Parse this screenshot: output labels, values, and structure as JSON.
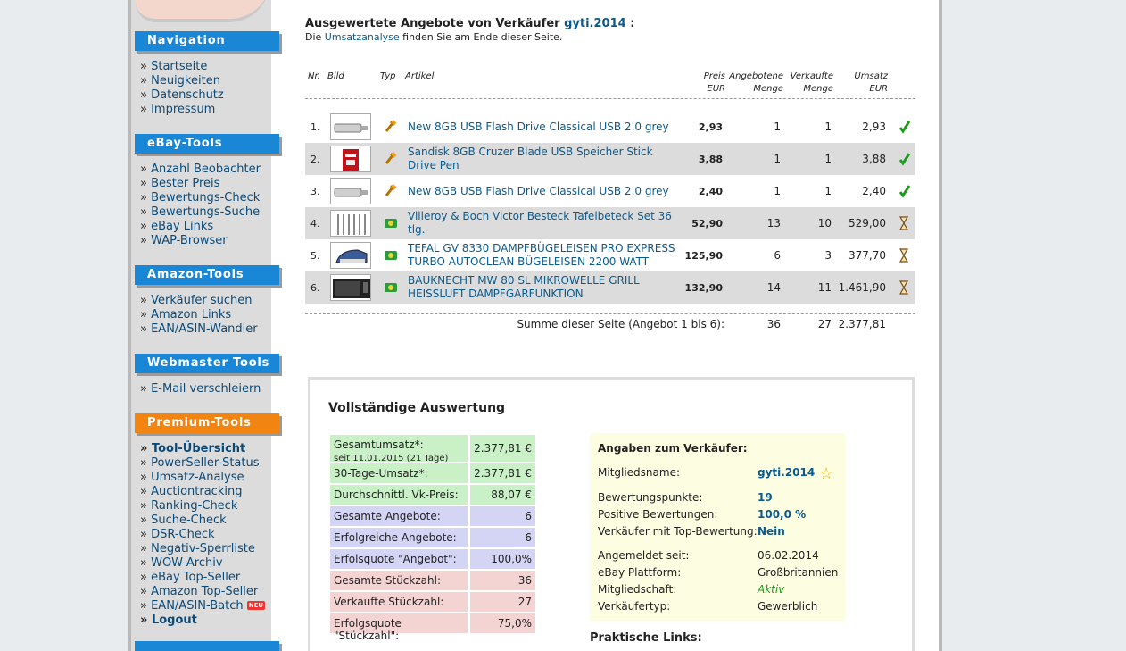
{
  "sidebar": {
    "sections": [
      {
        "title": "Navigation",
        "items": [
          "Startseite",
          "Neuigkeiten",
          "Datenschutz",
          "Impressum"
        ]
      },
      {
        "title": "eBay-Tools",
        "items": [
          "Anzahl Beobachter",
          "Bester Preis",
          "Bewertungs-Check",
          "Bewertungs-Suche",
          "eBay Links",
          "WAP-Browser"
        ]
      },
      {
        "title": "Amazon-Tools",
        "items": [
          "Verkäufer suchen",
          "Amazon Links",
          "EAN/ASIN-Wandler"
        ]
      },
      {
        "title": "Webmaster Tools",
        "items": [
          "E-Mail verschleiern"
        ]
      },
      {
        "title": "Premium-Tools",
        "items": [
          "Tool-Übersicht",
          "PowerSeller-Status",
          "Umsatz-Analyse",
          "Auctiontracking",
          "Ranking-Check",
          "Suche-Check",
          "DSR-Check",
          "Negativ-Sperrliste",
          "WOW-Archiv",
          "eBay Top-Seller",
          "Amazon Top-Seller",
          "EAN/ASIN-Batch",
          "Logout"
        ]
      }
    ],
    "neu_badge": "NEU"
  },
  "header": {
    "title_prefix": "Ausgewertete Angebote von Verkäufer",
    "seller": "gyti.2014",
    "title_suffix": ":",
    "sub_prefix": "Die",
    "sub_link": "Umsatzanalyse",
    "sub_suffix": "finden Sie am Ende dieser Seite."
  },
  "table": {
    "headers": {
      "nr": "Nr.",
      "bild": "Bild",
      "typ": "Typ",
      "artikel": "Artikel",
      "preis": "Preis",
      "preis_unit": "EUR",
      "angebotene": "Angebotene",
      "angebotene2": "Menge",
      "verkaufte": "Verkaufte",
      "verkaufte2": "Menge",
      "umsatz": "Umsatz",
      "umsatz_unit": "EUR"
    },
    "rows": [
      {
        "nr": "1.",
        "article": "New 8GB USB Flash Drive Classical USB 2.0 grey",
        "price": "2,93",
        "offered": "1",
        "sold": "1",
        "revenue": "2,93",
        "status": "check"
      },
      {
        "nr": "2.",
        "article": "Sandisk 8GB Cruzer Blade USB Speicher Stick Drive Pen",
        "price": "3,88",
        "offered": "1",
        "sold": "1",
        "revenue": "3,88",
        "status": "check"
      },
      {
        "nr": "3.",
        "article": "New 8GB USB Flash Drive Classical USB 2.0 grey",
        "price": "2,40",
        "offered": "1",
        "sold": "1",
        "revenue": "2,40",
        "status": "check"
      },
      {
        "nr": "4.",
        "article": "Villeroy & Boch Victor Besteck Tafelbeteck Set 36 tlg.",
        "price": "52,90",
        "offered": "13",
        "sold": "10",
        "revenue": "529,00",
        "status": "hourglass"
      },
      {
        "nr": "5.",
        "article": "TEFAL GV 8330 DAMPFBÜGELEISEN PRO EXPRESS TURBO AUTOCLEAN BÜGELEISEN 2200 WATT",
        "price": "125,90",
        "offered": "6",
        "sold": "3",
        "revenue": "377,70",
        "status": "hourglass"
      },
      {
        "nr": "6.",
        "article": "BAUKNECHT MW 80 SL MIKROWELLE GRILL HEISSLUFT DAMPFGARFUNKTION",
        "price": "132,90",
        "offered": "14",
        "sold": "11",
        "revenue": "1.461,90",
        "status": "hourglass"
      }
    ],
    "sum_label": "Summe dieser Seite (Angebot 1 bis 6):",
    "sum_offered": "36",
    "sum_sold": "27",
    "sum_revenue": "2.377,81"
  },
  "evaluation": {
    "title": "Vollständige Auswertung",
    "stats": [
      {
        "label": "Gesamtumsatz*:",
        "note": "seit 11.01.2015 (21 Tage)",
        "value": "2.377,81 €",
        "group": "g"
      },
      {
        "label": "30-Tage-Umsatz*:",
        "value": "2.377,81 €",
        "group": "g"
      },
      {
        "label": "Durchschnittl. Vk-Preis:",
        "value": "88,07 €",
        "group": "g"
      },
      {
        "label": "Gesamte Angebote:",
        "value": "6",
        "group": "p"
      },
      {
        "label": "Erfolgreiche Angebote:",
        "value": "6",
        "group": "p"
      },
      {
        "label": "Erfolsquote \"Angebot\":",
        "value": "100,0%",
        "group": "p"
      },
      {
        "label": "Gesamte Stückzahl:",
        "value": "36",
        "group": "k"
      },
      {
        "label": "Verkaufte Stückzahl:",
        "value": "27",
        "group": "k"
      },
      {
        "label": "Erfolgsquote \"Stückzahl\":",
        "value": "75,0%",
        "group": "k"
      }
    ],
    "seller_info": {
      "title": "Angaben zum Verkäufer:",
      "member_label": "Mitgliedsname:",
      "member_value": "gyti.2014",
      "points_label": "Bewertungspunkte:",
      "points_value": "19",
      "positive_label": "Positive Bewertungen:",
      "positive_value": "100,0 %",
      "top_label": "Verkäufer mit Top-Bewertung:",
      "top_value": "Nein",
      "since_label": "Angemeldet seit:",
      "since_value": "06.02.2014",
      "platform_label": "eBay Plattform:",
      "platform_value": "Großbritannien",
      "membership_label": "Mitgliedschaft:",
      "membership_value": "Aktiv",
      "type_label": "Verkäufertyp:",
      "type_value": "Gewerblich"
    },
    "links_title": "Praktische Links:"
  },
  "colors": {
    "accent_blue": "#1a86d6",
    "accent_orange": "#f28411",
    "link": "#0b5a8c",
    "check_green": "#1e9b1e"
  }
}
